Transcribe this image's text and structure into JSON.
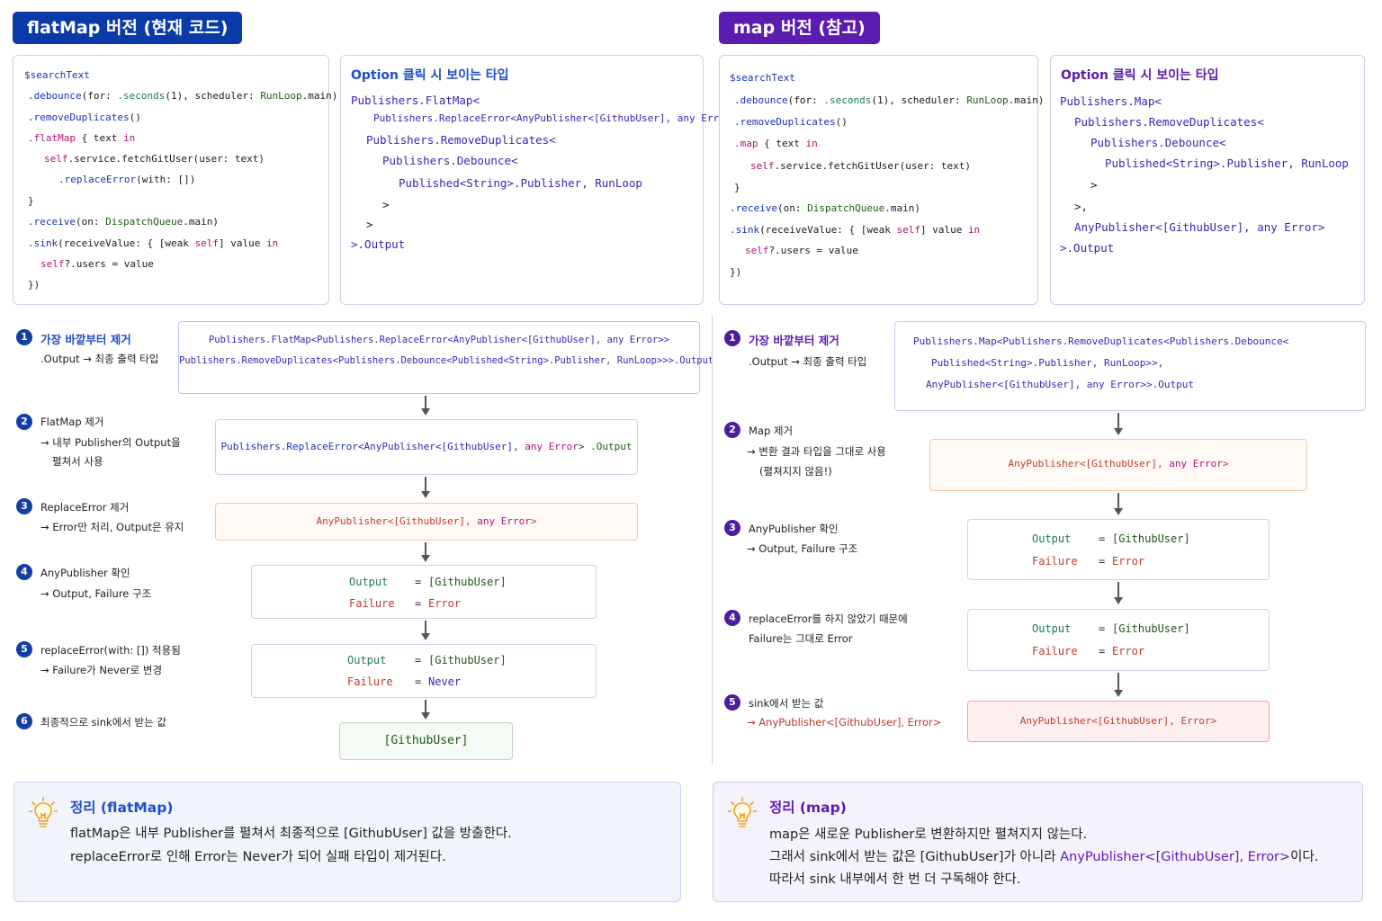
{
  "colors": {
    "flatmap_header": "#0a3aa8",
    "map_header": "#5b1cb0",
    "keyword": "#b0127a",
    "type_name": "#3f23b5",
    "error_red": "#c0392b",
    "output_green": "#1d7a55"
  },
  "flatmap": {
    "header": "flatMap 버전 (현재 코드)",
    "code": {
      "line1": "$searchText",
      "line2": {
        "method": ".debounce",
        "p1": "(for: ",
        "arg1": ".seconds",
        "p2": "(1), scheduler: ",
        "arg2": "RunLoop",
        "p3": ".main)"
      },
      "line3": {
        "method": ".removeDuplicates",
        "p1": "()"
      },
      "line4": {
        "method": ".flatMap",
        "p1": " { text ",
        "kw": "in"
      },
      "line5": {
        "kw": "self",
        "p1": ".service.fetchGitUser(user: text)"
      },
      "line6": {
        "method": ".replaceError",
        "p1": "(with: [])"
      },
      "line7": "}",
      "line8": {
        "method": ".receive",
        "p1": "(on: ",
        "arg": "DispatchQueue",
        "p2": ".main)"
      },
      "line9": {
        "method": ".sink",
        "p1": "(receiveValue: { [weak ",
        "kw": "self",
        "p2": "] value ",
        "kw2": "in"
      },
      "line10": {
        "kw": "self",
        "p1": "?.users = value"
      },
      "line11": "})"
    },
    "type_panel": {
      "title": "Option 클릭 시 보이는 타입",
      "lines": [
        "Publishers.FlatMap<",
        "Publishers.ReplaceError<AnyPublisher<[GithubUser], any Error>>,",
        "Publishers.RemoveDuplicates<",
        "Publishers.Debounce<",
        "Published<String>.Publisher, RunLoop",
        ">",
        ">",
        ">.Output"
      ]
    },
    "steps": [
      {
        "num": "1",
        "title": "가장 바깥부터 제거",
        "desc": ".Output → 최종 출력 타입"
      },
      {
        "num": "2",
        "title": "FlatMap 제거",
        "desc1": "→ 내부 Publisher의 Output을",
        "desc2": "펼쳐서 사용"
      },
      {
        "num": "3",
        "title": "ReplaceError 제거",
        "desc": "→ Error만 처리, Output은 유지"
      },
      {
        "num": "4",
        "title": "AnyPublisher 확인",
        "desc": "→ Output, Failure 구조"
      },
      {
        "num": "5",
        "title": "replaceError(with: []) 적용됨",
        "desc": "→ Failure가 Never로 변경"
      },
      {
        "num": "6",
        "title": "최종적으로 sink에서 받는 값"
      }
    ],
    "boxes": {
      "b1_line1": "Publishers.FlatMap<Publishers.ReplaceError<AnyPublisher<[GithubUser], any Error>>",
      "b1_line2": "Publishers.RemoveDuplicates<Publishers.Debounce<Published<String>.Publisher, RunLoop>>>.Output",
      "b2": {
        "a": "Publishers.ReplaceError",
        "b": "<AnyPublisher<[GithubUser], ",
        "c": "any Error",
        "d": ">  .Output"
      },
      "b3": {
        "a": "AnyPublisher<[GithubUser], ",
        "b": "any Error",
        "c": ">"
      },
      "b4": {
        "output_key": "Output",
        "output_val": "[GithubUser]",
        "failure_key": "Failure",
        "failure_val": "Error",
        "eq": "="
      },
      "b5": {
        "output_key": "Output",
        "output_val": "[GithubUser]",
        "failure_key": "Failure",
        "failure_val": "Never",
        "eq": "="
      },
      "b6": "[GithubUser]"
    },
    "summary": {
      "title": "정리 (flatMap)",
      "line1": "flatMap은 내부 Publisher를 펼쳐서 최종적으로 [GithubUser] 값을 방출한다.",
      "line2": "replaceError로 인해 Error는 Never가 되어 실패 타입이 제거된다."
    }
  },
  "map": {
    "header": "map 버전 (참고)",
    "code": {
      "line1": "$searchText",
      "line2": {
        "method": ".debounce",
        "p1": "(for: ",
        "arg1": ".seconds",
        "p2": "(1), scheduler: ",
        "arg2": "RunLoop",
        "p3": ".main)"
      },
      "line3": {
        "method": ".removeDuplicates",
        "p1": "()"
      },
      "line4": {
        "method": ".map",
        "p1": " { text ",
        "kw": "in"
      },
      "line5": {
        "kw": "self",
        "p1": ".service.fetchGitUser(user: text)"
      },
      "line6": "}",
      "line7": {
        "method": ".receive",
        "p1": "(on: ",
        "arg": "DispatchQueue",
        "p2": ".main)"
      },
      "line8": {
        "method": ".sink",
        "p1": "(receiveValue: { [weak ",
        "kw": "self",
        "p2": "] value ",
        "kw2": "in"
      },
      "line9": {
        "kw": "self",
        "p1": "?.users = value"
      },
      "line10": "})"
    },
    "type_panel": {
      "title": "Option 클릭 시 보이는 타입",
      "lines": [
        "Publishers.Map<",
        "Publishers.RemoveDuplicates<",
        "Publishers.Debounce<",
        "Published<String>.Publisher, RunLoop",
        ">",
        ">,",
        "AnyPublisher<[GithubUser], any Error>",
        ">.Output"
      ]
    },
    "steps": [
      {
        "num": "1",
        "title": "가장 바깥부터 제거",
        "desc": ".Output → 최종 출력 타입"
      },
      {
        "num": "2",
        "title": "Map 제거",
        "desc1": "→ 변환 결과 타입을 그대로 사용",
        "desc2": "(펼쳐지지 않음!)"
      },
      {
        "num": "3",
        "title": "AnyPublisher 확인",
        "desc": "→ Output, Failure 구조"
      },
      {
        "num": "4",
        "title": "replaceError를 하지 않았기 때문에",
        "desc": "Failure는 그대로 Error"
      },
      {
        "num": "5",
        "title": "sink에서 받는 값",
        "desc": "→ AnyPublisher<[GithubUser], Error>"
      }
    ],
    "boxes": {
      "b1_line1": "Publishers.Map<Publishers.RemoveDuplicates<Publishers.Debounce<",
      "b1_line2": "Published<String>.Publisher, RunLoop>>,",
      "b1_line3": "AnyPublisher<[GithubUser], any Error>>.Output",
      "b2": {
        "a": "AnyPublisher<[GithubUser], ",
        "b": "any Error",
        "c": ">"
      },
      "b3": {
        "output_key": "Output",
        "output_val": "[GithubUser]",
        "failure_key": "Failure",
        "failure_val": "Error",
        "eq": "="
      },
      "b4": {
        "output_key": "Output",
        "output_val": "[GithubUser]",
        "failure_key": "Failure",
        "failure_val": "Error",
        "eq": "="
      },
      "b5": "AnyPublisher<[GithubUser], Error>"
    },
    "summary": {
      "title": "정리 (map)",
      "line1": "map은 새로운 Publisher로 변환하지만 펼쳐지지 않는다.",
      "line2a": "그래서 sink에서 받는 값은 [GithubUser]가 아니라 ",
      "line2b": "AnyPublisher<[GithubUser], Error>",
      "line2c": "이다.",
      "line3": "따라서 sink 내부에서 한 번 더 구독해야 한다."
    }
  }
}
